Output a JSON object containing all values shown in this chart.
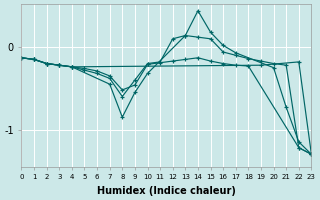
{
  "xlabel": "Humidex (Indice chaleur)",
  "bg_color": "#cce8e8",
  "line_color": "#006666",
  "grid_color": "#ffffff",
  "xlim": [
    0,
    23
  ],
  "ylim": [
    -1.45,
    0.52
  ],
  "yticks": [
    0,
    -1
  ],
  "xticks": [
    0,
    1,
    2,
    3,
    4,
    5,
    6,
    7,
    8,
    9,
    10,
    11,
    12,
    13,
    14,
    15,
    16,
    17,
    18,
    19,
    20,
    21,
    22,
    23
  ],
  "lines": [
    {
      "x": [
        0,
        1,
        2,
        3,
        4,
        19,
        22,
        23
      ],
      "y": [
        -0.13,
        -0.15,
        -0.2,
        -0.22,
        -0.24,
        -0.22,
        -0.18,
        -1.3
      ]
    },
    {
      "x": [
        0,
        1,
        2,
        3,
        4,
        5,
        6,
        7,
        8,
        9,
        10,
        11,
        12,
        13,
        14,
        15,
        16,
        17,
        18,
        22,
        23
      ],
      "y": [
        -0.13,
        -0.15,
        -0.2,
        -0.22,
        -0.24,
        -0.26,
        -0.29,
        -0.35,
        -0.52,
        -0.46,
        -0.21,
        -0.19,
        -0.17,
        -0.15,
        -0.13,
        -0.17,
        -0.2,
        -0.22,
        -0.23,
        -1.22,
        -1.3
      ]
    },
    {
      "x": [
        0,
        1,
        2,
        3,
        4,
        7,
        8,
        9,
        10,
        13,
        14,
        15,
        16,
        17,
        20,
        21,
        22,
        23
      ],
      "y": [
        -0.13,
        -0.15,
        -0.2,
        -0.22,
        -0.24,
        -0.45,
        -0.85,
        -0.55,
        -0.32,
        0.14,
        0.44,
        0.18,
        0.02,
        -0.07,
        -0.25,
        -0.73,
        -1.15,
        -1.3
      ]
    },
    {
      "x": [
        0,
        1,
        2,
        3,
        4,
        5,
        6,
        7,
        8,
        9,
        10,
        11,
        12,
        13,
        14,
        15,
        16,
        17,
        18,
        19,
        20,
        21,
        22,
        23
      ],
      "y": [
        -0.13,
        -0.15,
        -0.2,
        -0.22,
        -0.24,
        -0.28,
        -0.32,
        -0.38,
        -0.6,
        -0.4,
        -0.2,
        -0.18,
        0.1,
        0.14,
        0.12,
        0.1,
        -0.06,
        -0.1,
        -0.14,
        -0.17,
        -0.2,
        -0.22,
        -1.22,
        -1.3
      ]
    }
  ]
}
